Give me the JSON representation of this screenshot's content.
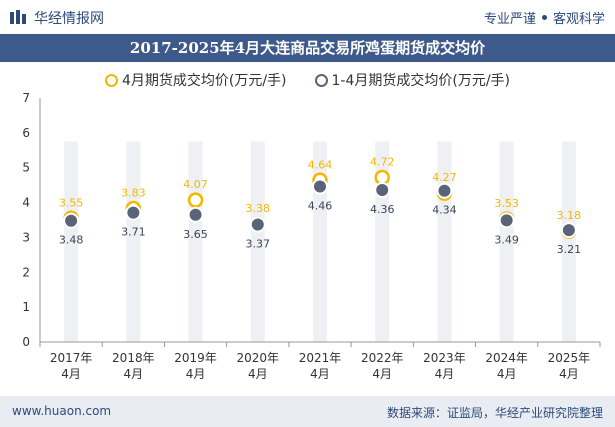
{
  "header": {
    "logo_text": "华经情报网",
    "tagline_left": "专业严谨",
    "tagline_right": "客观科学"
  },
  "colors": {
    "series1": "#f2b800",
    "series2": "#5a6478",
    "column_band": "#eef0f3",
    "title_bg": "#3d5a8a"
  },
  "chart_data": {
    "type": "scatter",
    "title": "2017-2025年4月大连商品交易所鸡蛋期货成交均价",
    "categories": [
      "2017年\n4月",
      "2018年\n4月",
      "2019年\n4月",
      "2020年\n4月",
      "2021年\n4月",
      "2022年\n4月",
      "2023年\n4月",
      "2024年\n4月",
      "2025年\n4月"
    ],
    "series": [
      {
        "name": "4月期货成交均价(万元/手)",
        "values": [
          3.55,
          3.83,
          4.07,
          3.38,
          4.64,
          4.72,
          4.27,
          3.53,
          3.18
        ]
      },
      {
        "name": "1-4月期货成交均价(万元/手)",
        "values": [
          3.48,
          3.71,
          3.65,
          3.37,
          4.46,
          4.36,
          4.34,
          3.49,
          3.21
        ]
      }
    ],
    "ylim": [
      0,
      7
    ],
    "yticks": [
      0,
      1,
      2,
      3,
      4,
      5,
      6,
      7
    ],
    "legend_position": "top-center",
    "grid": false
  },
  "footer": {
    "website": "www.huaon.com",
    "source": "数据来源：证监局，华经产业研究院整理"
  }
}
